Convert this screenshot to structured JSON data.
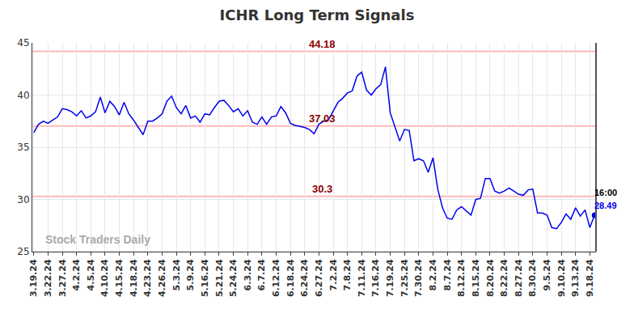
{
  "chart_data": {
    "type": "line",
    "title": "ICHR Long Term Signals",
    "watermark": "Stock Traders Daily",
    "color": "#0000ee",
    "grid": true,
    "ylim": [
      25,
      45
    ],
    "yticks": [
      25,
      30,
      35,
      40,
      45
    ],
    "reference_lines": [
      44.18,
      37.03,
      30.3
    ],
    "last_point": {
      "time": "16:00",
      "value_label": "28.49"
    },
    "categories": [
      "3.19.24",
      null,
      null,
      "3.22.24",
      null,
      null,
      "3.27.24",
      null,
      null,
      "4.2.24",
      null,
      null,
      "4.5.24",
      null,
      null,
      "4.10.24",
      null,
      null,
      "4.15.24",
      null,
      null,
      "4.18.24",
      null,
      null,
      "4.23.24",
      null,
      null,
      "4.26.24",
      null,
      null,
      "5.3.24",
      null,
      null,
      "5.9.24",
      null,
      null,
      "5.16.24",
      null,
      null,
      "5.21.24",
      null,
      null,
      "5.24.24",
      null,
      null,
      "6.3.24",
      null,
      null,
      "6.7.24",
      null,
      null,
      "6.12.24",
      null,
      null,
      "6.18.24",
      null,
      null,
      "6.24.24",
      null,
      null,
      "6.27.24",
      null,
      null,
      "7.2.24",
      null,
      null,
      "7.8.24",
      null,
      null,
      "7.11.24",
      null,
      null,
      "7.16.24",
      null,
      null,
      "7.19.24",
      null,
      null,
      "7.25.24",
      null,
      null,
      "7.30.24",
      null,
      null,
      "8.2.24",
      null,
      null,
      "8.7.24",
      null,
      null,
      "8.12.24",
      null,
      null,
      "8.15.24",
      null,
      null,
      "8.20.24",
      null,
      null,
      "8.22.24",
      null,
      null,
      "8.27.24",
      null,
      null,
      "8.30.24",
      null,
      null,
      "9.5.24",
      null,
      null,
      "9.10.24",
      null,
      null,
      "9.13.24",
      null,
      null,
      "9.18.24",
      null
    ],
    "values": [
      36.4,
      37.2,
      37.5,
      37.3,
      37.6,
      37.9,
      38.7,
      38.6,
      38.4,
      38.0,
      38.5,
      37.8,
      38.0,
      38.4,
      39.8,
      38.3,
      39.4,
      38.9,
      38.1,
      39.3,
      38.2,
      37.6,
      36.9,
      36.2,
      37.5,
      37.5,
      37.8,
      38.2,
      39.4,
      39.9,
      38.8,
      38.2,
      39.0,
      37.8,
      38.0,
      37.4,
      38.2,
      38.1,
      38.8,
      39.4,
      39.5,
      39.0,
      38.4,
      38.7,
      38.0,
      38.5,
      37.4,
      37.2,
      37.9,
      37.2,
      37.9,
      38.0,
      38.9,
      38.3,
      37.3,
      37.1,
      37.0,
      36.9,
      36.7,
      36.3,
      37.2,
      37.5,
      37.6,
      38.5,
      39.3,
      39.7,
      40.2,
      40.4,
      41.8,
      42.2,
      40.5,
      40.0,
      40.6,
      41.0,
      42.7,
      38.3,
      37.0,
      35.6,
      36.7,
      36.6,
      33.7,
      33.9,
      33.7,
      32.6,
      34.0,
      31.0,
      29.2,
      28.2,
      28.1,
      29.0,
      29.3,
      28.9,
      28.5,
      30.0,
      30.1,
      32.0,
      32.0,
      30.8,
      30.6,
      30.8,
      31.1,
      30.8,
      30.5,
      30.4,
      30.9,
      31.0,
      28.7,
      28.7,
      28.5,
      27.3,
      27.2,
      27.8,
      28.6,
      28.1,
      29.2,
      28.4,
      29.0,
      27.3,
      28.49
    ]
  }
}
